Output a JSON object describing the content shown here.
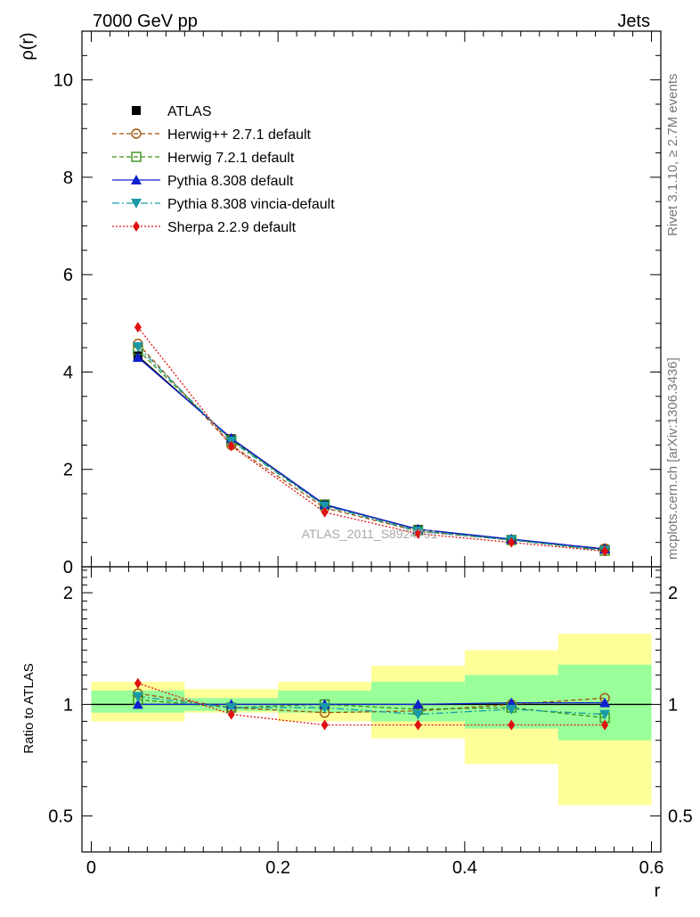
{
  "header": {
    "left": "7000 GeV pp",
    "right": "Jets"
  },
  "side_labels": {
    "rivet": "Rivet 3.1.10, ≥ 2.7M events",
    "mcplots": "mcplots.cern.ch [arXiv:1306.3436]"
  },
  "watermark": "ATLAS_2011_S8924791",
  "chart_data": [
    {
      "type": "line",
      "panel": "main",
      "ylabel": "ρ(r)",
      "ylim": [
        0,
        11
      ],
      "yticks": [
        0,
        2,
        4,
        6,
        8,
        10
      ],
      "ytick_labels": [
        "0",
        "2",
        "4",
        "6",
        "8",
        "10"
      ],
      "legend_position": "top-left",
      "x": [
        0.05,
        0.15,
        0.25,
        0.35,
        0.45,
        0.55
      ],
      "series": [
        {
          "name": "ATLAS",
          "color": "#000000",
          "marker": "square-filled",
          "dash": "",
          "values": [
            4.33,
            2.63,
            1.27,
            0.77,
            0.56,
            0.36
          ]
        },
        {
          "name": "Herwig++ 2.7.1 default",
          "color": "#a0520a",
          "marker": "circle-open",
          "dash": "5,3",
          "values": [
            4.58,
            2.5,
            1.21,
            0.73,
            0.55,
            0.375
          ]
        },
        {
          "name": "Herwig 7.2.1 default",
          "color": "#3a8e1c",
          "marker": "square-open",
          "dash": "5,3",
          "values": [
            4.45,
            2.6,
            1.28,
            0.75,
            0.55,
            0.33
          ]
        },
        {
          "name": "Pythia 8.308 default",
          "color": "#1020d0",
          "marker": "triangle-up",
          "dash": "",
          "values": [
            4.3,
            2.64,
            1.28,
            0.77,
            0.57,
            0.365
          ]
        },
        {
          "name": "Pythia 8.308 vincia-default",
          "color": "#1a9aa8",
          "marker": "triangle-down",
          "dash": "8,3,2,3",
          "values": [
            4.52,
            2.58,
            1.25,
            0.73,
            0.55,
            0.34
          ]
        },
        {
          "name": "Sherpa 2.2.9 default",
          "color": "#e01010",
          "marker": "diamond",
          "dash": "2,2",
          "values": [
            4.92,
            2.48,
            1.12,
            0.68,
            0.5,
            0.32
          ]
        }
      ]
    },
    {
      "type": "line",
      "panel": "ratio",
      "xlabel": "r",
      "ylabel": "Ratio to ATLAS",
      "xlim": [
        -0.01,
        0.61
      ],
      "ylim": [
        0.4,
        2.35
      ],
      "xticks": [
        0,
        0.2,
        0.4,
        0.6
      ],
      "xtick_labels": [
        "0",
        "0.2",
        "0.4",
        "0.6"
      ],
      "yticks": [
        0.5,
        1,
        2
      ],
      "ytick_labels": [
        "0.5",
        "1",
        "2"
      ],
      "bin_edges": [
        0.0,
        0.1,
        0.2,
        0.3,
        0.4,
        0.5,
        0.6
      ],
      "band_outer_color": "#ffff99",
      "band_inner_color": "#99ff99",
      "band_outer": [
        [
          0.9,
          1.15
        ],
        [
          0.95,
          1.1
        ],
        [
          0.9,
          1.15
        ],
        [
          0.81,
          1.27
        ],
        [
          0.69,
          1.4
        ],
        [
          0.535,
          1.55
        ]
      ],
      "band_inner": [
        [
          0.95,
          1.09
        ],
        [
          0.96,
          1.04
        ],
        [
          0.95,
          1.09
        ],
        [
          0.9,
          1.15
        ],
        [
          0.86,
          1.2
        ],
        [
          0.8,
          1.28
        ]
      ],
      "x": [
        0.05,
        0.15,
        0.25,
        0.35,
        0.45,
        0.55
      ],
      "series": [
        {
          "name": "Herwig++ 2.7.1 default",
          "color": "#a0520a",
          "marker": "circle-open",
          "dash": "5,3",
          "values": [
            1.07,
            0.98,
            0.95,
            0.96,
            1.0,
            1.04
          ]
        },
        {
          "name": "Herwig 7.2.1 default",
          "color": "#3a8e1c",
          "marker": "square-open",
          "dash": "5,3",
          "values": [
            1.03,
            0.98,
            1.0,
            0.97,
            0.98,
            0.92
          ]
        },
        {
          "name": "Pythia 8.308 default",
          "color": "#1020d0",
          "marker": "triangle-up",
          "dash": "",
          "values": [
            1.0,
            1.0,
            1.0,
            1.0,
            1.01,
            1.01
          ]
        },
        {
          "name": "Pythia 8.308 vincia-default",
          "color": "#1a9aa8",
          "marker": "triangle-down",
          "dash": "8,3,2,3",
          "values": [
            1.05,
            0.98,
            0.98,
            0.94,
            0.97,
            0.94
          ]
        },
        {
          "name": "Sherpa 2.2.9 default",
          "color": "#e01010",
          "marker": "diamond",
          "dash": "2,2",
          "values": [
            1.14,
            0.94,
            0.88,
            0.88,
            0.88,
            0.88
          ]
        }
      ]
    }
  ]
}
